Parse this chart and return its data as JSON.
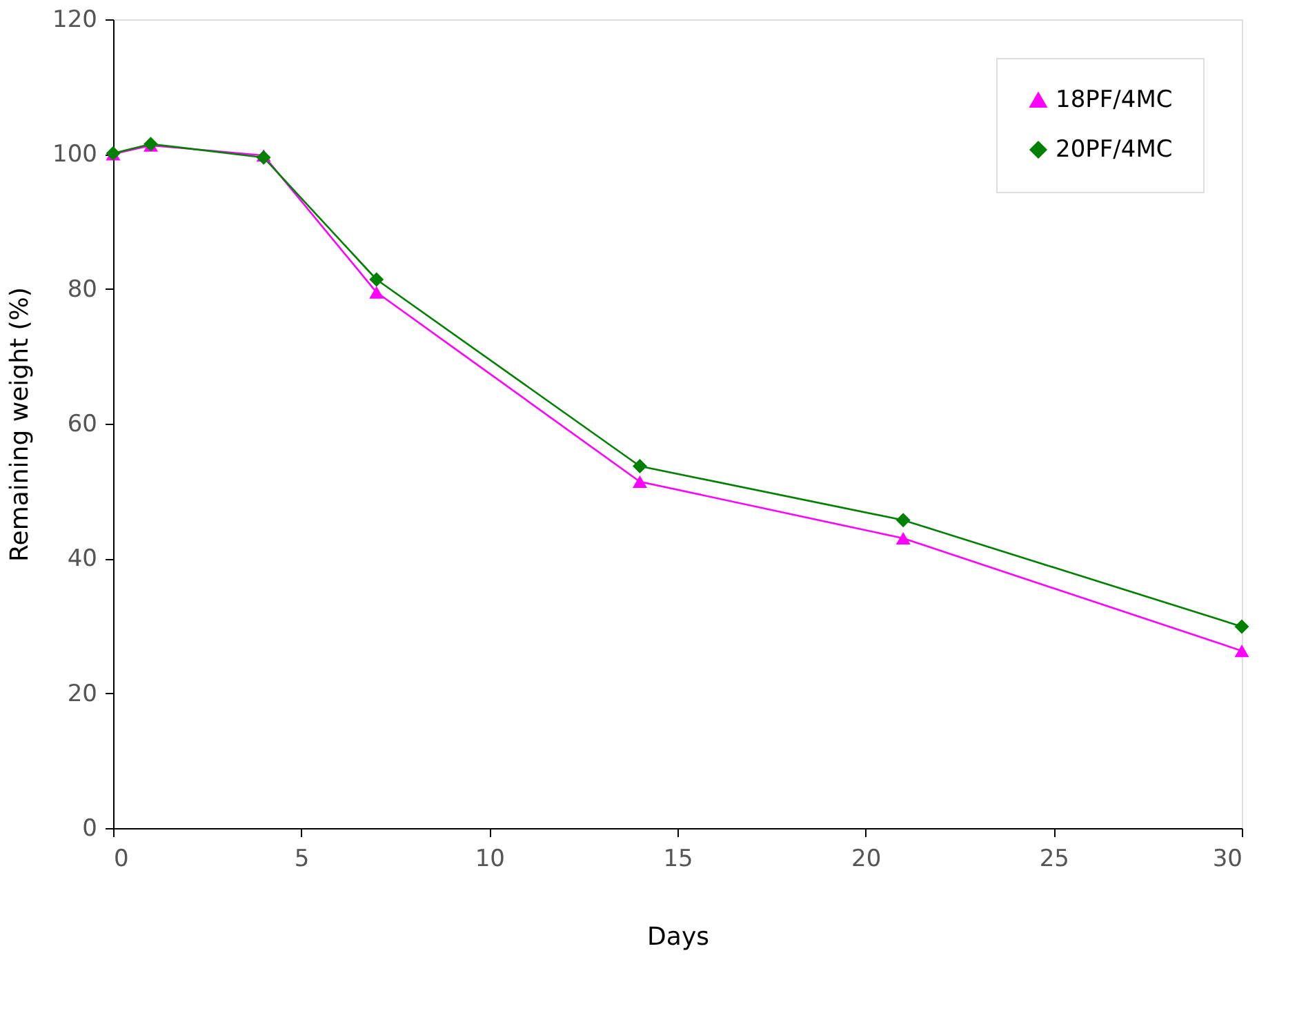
{
  "chart_data": {
    "type": "line",
    "xlabel": "Days",
    "ylabel": "Remaining weight (%)",
    "x": [
      0,
      1,
      4,
      7,
      14,
      21,
      30
    ],
    "series": [
      {
        "name": "18PF/4MC",
        "color": "#ff00ff",
        "marker": "triangle",
        "values": [
          100,
          101.3,
          99.8,
          79.5,
          51.4,
          43,
          26.3
        ]
      },
      {
        "name": "20PF/4MC",
        "color": "#008000",
        "marker": "diamond",
        "values": [
          100.1,
          101.5,
          99.5,
          81.4,
          53.7,
          45.7,
          29.9
        ]
      }
    ],
    "xlim": [
      0,
      30
    ],
    "xticks": [
      0,
      5,
      10,
      15,
      20,
      25,
      30
    ],
    "ylim": [
      0,
      120
    ],
    "yticks": [
      0,
      20,
      40,
      60,
      80,
      100,
      120
    ],
    "grid": false,
    "legend": "top right",
    "line_style": "solid"
  }
}
